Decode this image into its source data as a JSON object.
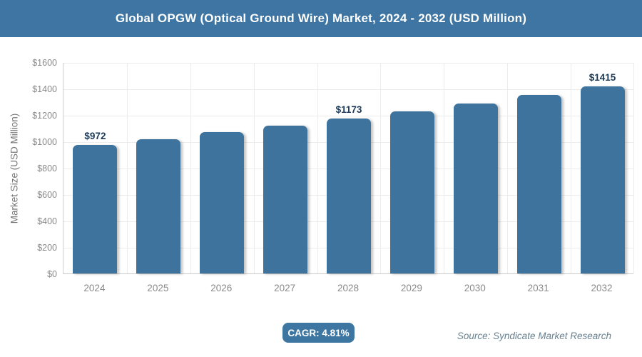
{
  "header": {
    "title": "Global OPGW (Optical Ground Wire) Market, 2024 - 2032 (USD Million)"
  },
  "chart_data": {
    "type": "bar",
    "title": "Global OPGW (Optical Ground Wire) Market, 2024 - 2032 (USD Million)",
    "categories": [
      "2024",
      "2025",
      "2026",
      "2027",
      "2028",
      "2029",
      "2030",
      "2031",
      "2032"
    ],
    "values": [
      972,
      1019,
      1068,
      1119,
      1173,
      1229,
      1288,
      1351,
      1415
    ],
    "bar_labels": [
      "$972",
      "",
      "",
      "",
      "$1173",
      "",
      "",
      "",
      "$1415"
    ],
    "xlabel": "",
    "ylabel": "Market Size (USD Million)",
    "ylim": [
      0,
      1600
    ],
    "ytick_step": 200,
    "ytick_labels": [
      "$0",
      "$200",
      "$400",
      "$600",
      "$800",
      "$1000",
      "$1200",
      "$1400",
      "$1600"
    ],
    "grid": true,
    "legend": "none",
    "bar_color": "#3d739c",
    "bar_label_color": "#1c3a57"
  },
  "footer": {
    "cagr_label": "CAGR: 4.81%",
    "source": "Source: Syndicate Market Research"
  },
  "colors": {
    "title_bar_bg": "#3e75a2",
    "badge_bg": "#3e76a2",
    "axis_text": "#8a8a8a",
    "gridline": "#ececec",
    "source_text": "#68808f"
  }
}
